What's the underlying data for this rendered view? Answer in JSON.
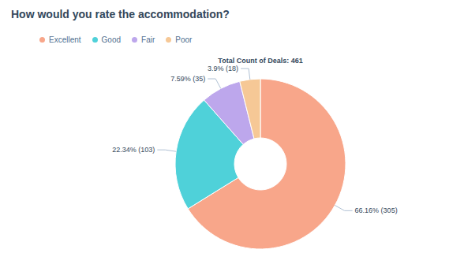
{
  "chart_data": {
    "type": "donut",
    "title": "How would you rate the accommodation?",
    "subtitle": "Total Count of Deals: 461",
    "categories": [
      "Excellent",
      "Good",
      "Fair",
      "Poor"
    ],
    "values": [
      66.16,
      22.34,
      7.59,
      3.9
    ],
    "value_labels": [
      "66.16% (305)",
      "22.34% (103)",
      "7.59% (35)",
      "3.9% (18)"
    ],
    "colors": [
      "#f8a68a",
      "#4fd1d9",
      "#bda7ec",
      "#f6c896"
    ],
    "legend": "top-left",
    "data_labels": true
  }
}
